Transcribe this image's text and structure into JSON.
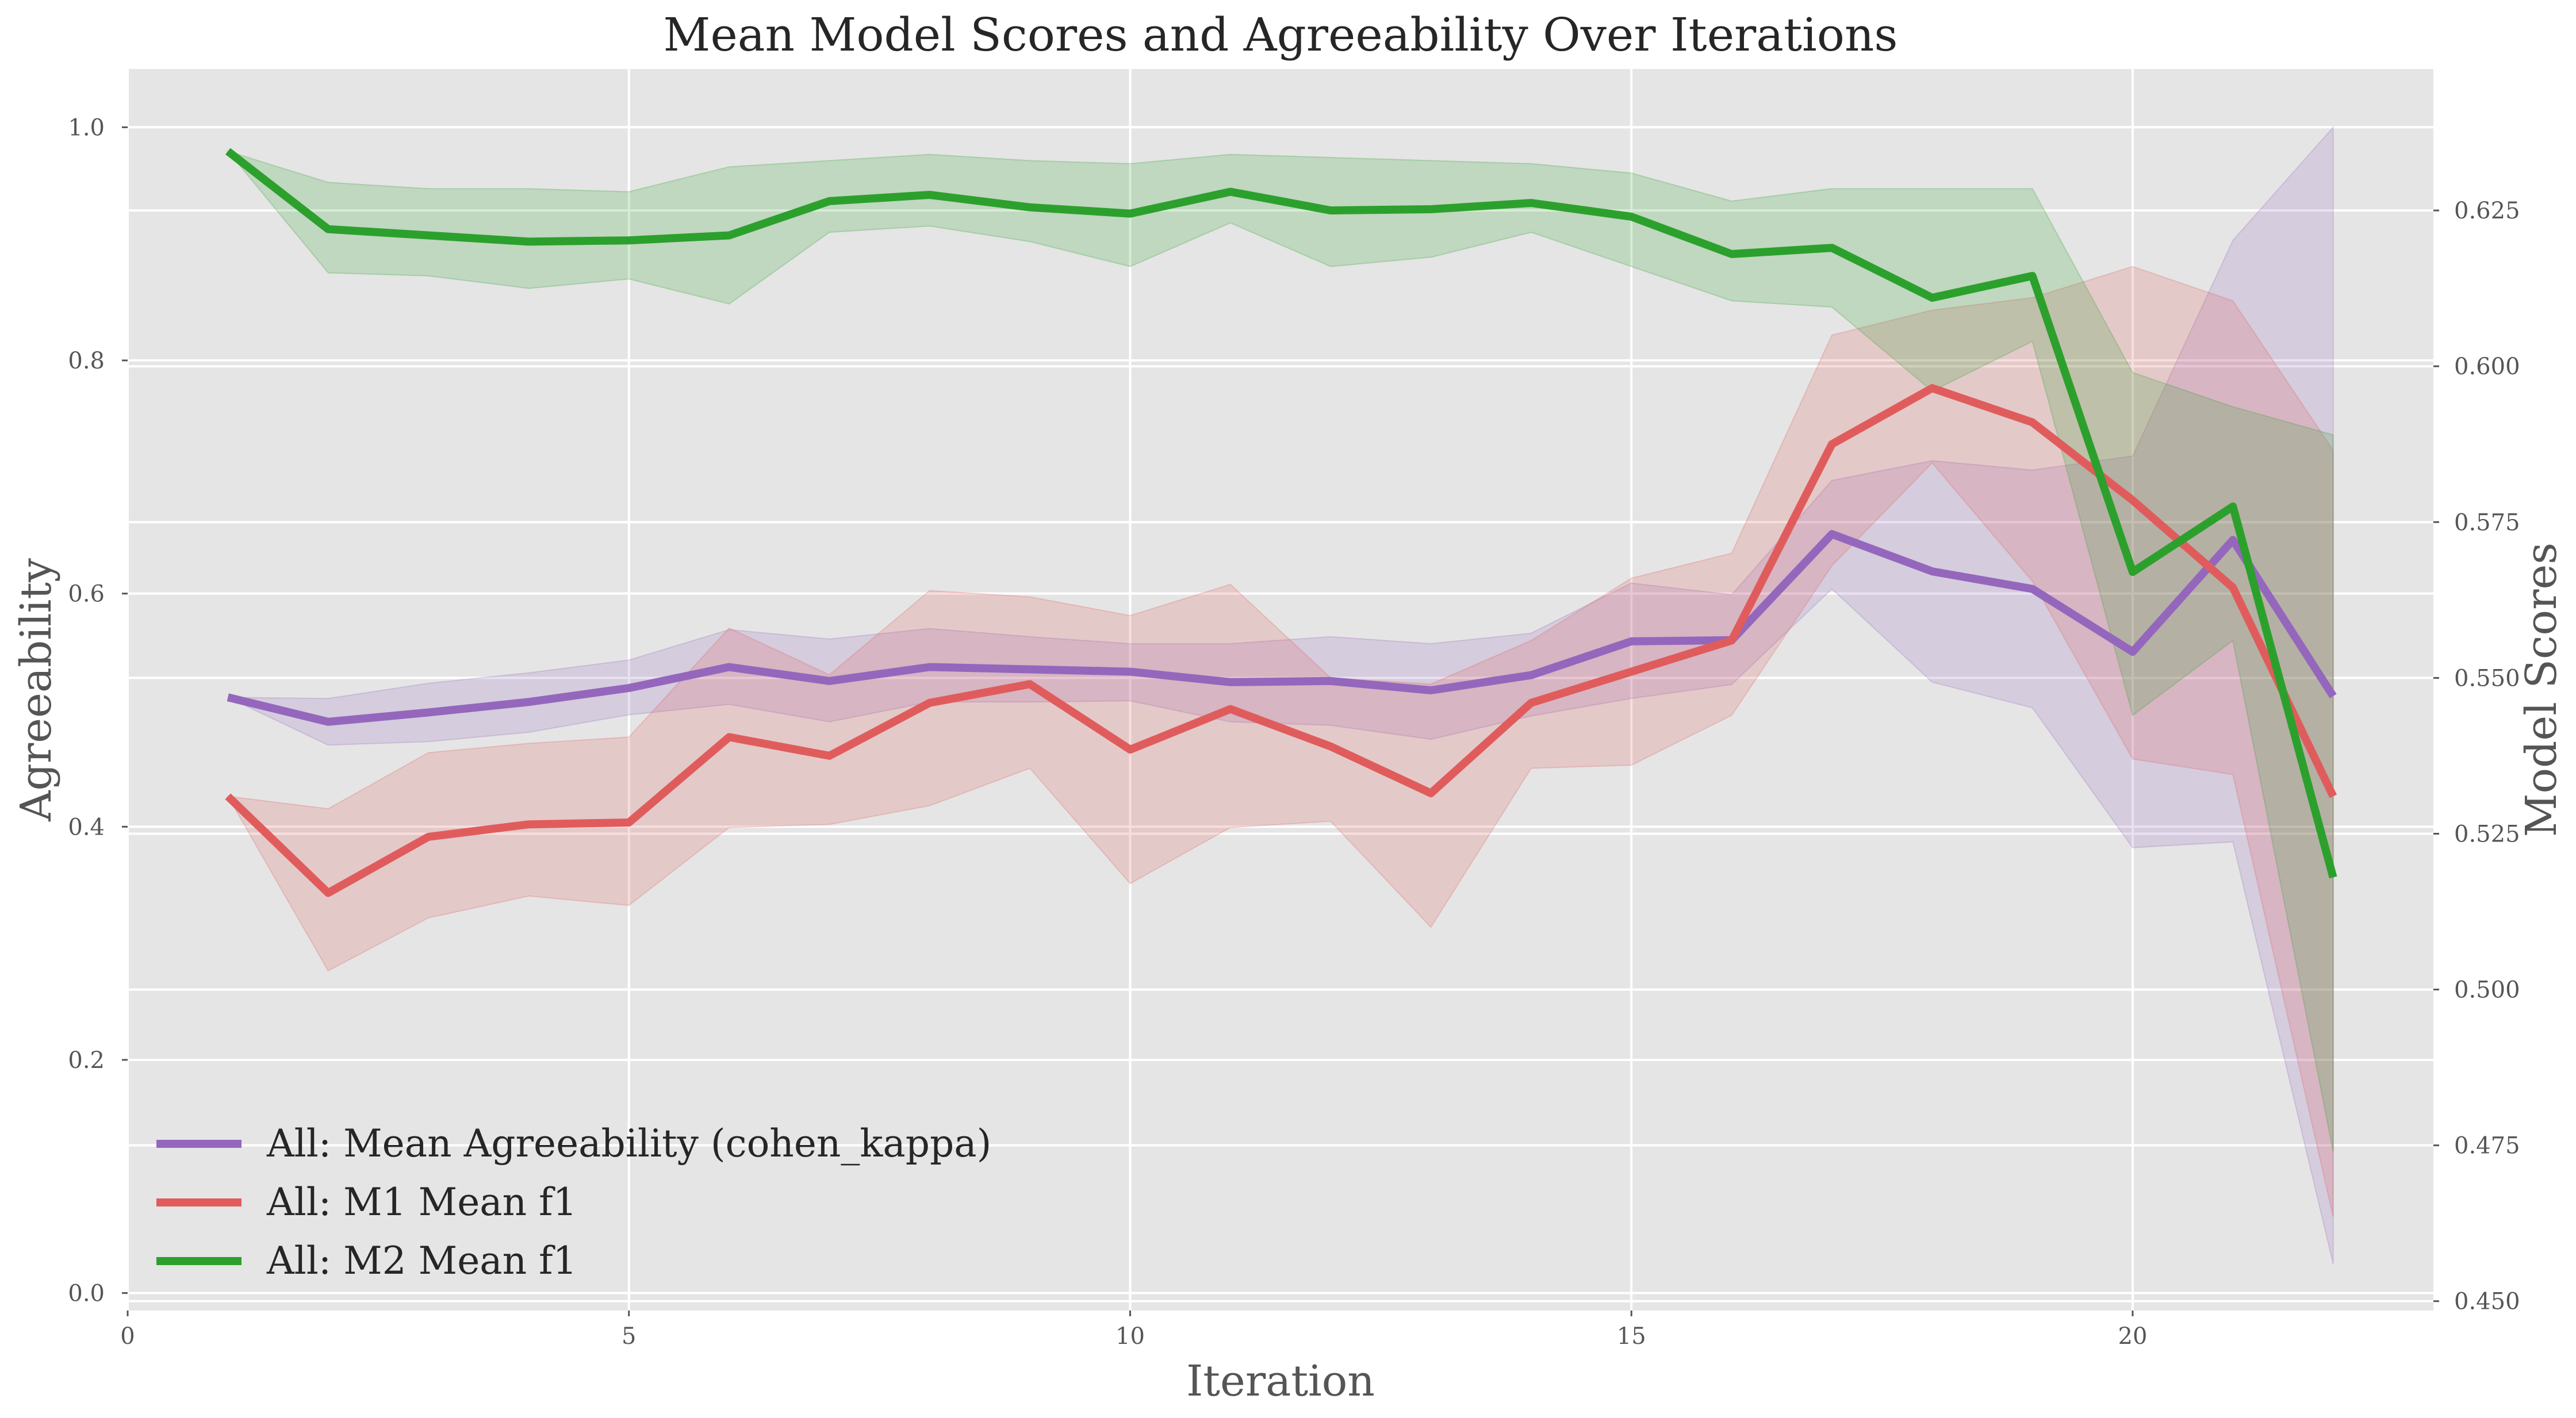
{
  "chart_data": {
    "type": "line",
    "title": "Mean Model Scores and Agreeability Over Iterations",
    "xlabel": "Iteration",
    "ylabel_left": "Agreeability",
    "ylabel_right": "Model Scores",
    "x": [
      1,
      2,
      3,
      4,
      5,
      6,
      7,
      8,
      9,
      10,
      11,
      12,
      13,
      14,
      15,
      16,
      17,
      18,
      19,
      20,
      21,
      22
    ],
    "xlim": [
      0,
      23
    ],
    "ylim_left": [
      -0.015,
      1.05
    ],
    "ylim_right": [
      0.4485,
      0.6477
    ],
    "xticks": [
      0,
      5,
      10,
      15,
      20
    ],
    "yticks_left": [
      0.0,
      0.2,
      0.4,
      0.6,
      0.8,
      1.0
    ],
    "ytick_labels_left": [
      "0.0",
      "0.2",
      "0.4",
      "0.6",
      "0.8",
      "1.0"
    ],
    "yticks_right": [
      0.45,
      0.475,
      0.5,
      0.525,
      0.55,
      0.575,
      0.6,
      0.625
    ],
    "ytick_labels_right": [
      "0.450",
      "0.475",
      "0.500",
      "0.525",
      "0.550",
      "0.575",
      "0.600",
      "0.625"
    ],
    "grid": true,
    "legend_position": "lower-left",
    "series": [
      {
        "name": "All: Mean Agreeability (cohen_kappa)",
        "axis": "left",
        "color": "#9467bd",
        "values": [
          0.511,
          0.49,
          0.498,
          0.507,
          0.519,
          0.537,
          0.525,
          0.537,
          0.535,
          0.533,
          0.524,
          0.525,
          0.517,
          0.53,
          0.559,
          0.56,
          0.651,
          0.619,
          0.604,
          0.55,
          0.646,
          0.512
        ],
        "lower": [
          0.511,
          0.47,
          0.473,
          0.481,
          0.496,
          0.505,
          0.49,
          0.507,
          0.507,
          0.508,
          0.49,
          0.487,
          0.475,
          0.495,
          0.51,
          0.522,
          0.604,
          0.524,
          0.502,
          0.382,
          0.387,
          0.025
        ],
        "upper": [
          0.511,
          0.51,
          0.523,
          0.532,
          0.543,
          0.569,
          0.561,
          0.57,
          0.563,
          0.557,
          0.557,
          0.563,
          0.557,
          0.566,
          0.609,
          0.599,
          0.697,
          0.714,
          0.706,
          0.718,
          0.903,
          1.0
        ]
      },
      {
        "name": "All: M1 Mean f1",
        "axis": "right",
        "color": "#e05c5c",
        "values": [
          0.531,
          0.5155,
          0.5245,
          0.5265,
          0.5268,
          0.5405,
          0.5375,
          0.546,
          0.549,
          0.5385,
          0.545,
          0.539,
          0.5315,
          0.546,
          0.551,
          0.556,
          0.5875,
          0.5965,
          0.591,
          0.5785,
          0.5645,
          0.531
        ],
        "lower": [
          0.531,
          0.503,
          0.5115,
          0.515,
          0.5135,
          0.526,
          0.5265,
          0.5295,
          0.5355,
          0.517,
          0.526,
          0.527,
          0.51,
          0.5355,
          0.536,
          0.544,
          0.568,
          0.5845,
          0.5655,
          0.537,
          0.5345,
          0.4635
        ],
        "upper": [
          0.531,
          0.529,
          0.538,
          0.5395,
          0.5405,
          0.558,
          0.5505,
          0.564,
          0.563,
          0.56,
          0.565,
          0.55,
          0.549,
          0.556,
          0.566,
          0.57,
          0.605,
          0.609,
          0.611,
          0.616,
          0.6105,
          0.5865
        ]
      },
      {
        "name": "All: M2 Mean f1",
        "axis": "right",
        "color": "#2ca02c",
        "values": [
          0.6345,
          0.622,
          0.621,
          0.62,
          0.6202,
          0.621,
          0.6265,
          0.6275,
          0.6255,
          0.6245,
          0.628,
          0.625,
          0.6252,
          0.6262,
          0.624,
          0.618,
          0.619,
          0.611,
          0.6145,
          0.567,
          0.5775,
          0.518
        ],
        "lower": [
          0.6345,
          0.615,
          0.6145,
          0.6125,
          0.614,
          0.61,
          0.6215,
          0.6225,
          0.62,
          0.616,
          0.623,
          0.616,
          0.6175,
          0.6215,
          0.616,
          0.6105,
          0.6095,
          0.596,
          0.604,
          0.544,
          0.556,
          0.474
        ],
        "upper": [
          0.6345,
          0.6295,
          0.6285,
          0.6285,
          0.628,
          0.632,
          0.633,
          0.634,
          0.633,
          0.6325,
          0.634,
          0.6335,
          0.633,
          0.6325,
          0.631,
          0.6265,
          0.6285,
          0.6285,
          0.6285,
          0.599,
          0.5935,
          0.589
        ]
      }
    ]
  }
}
